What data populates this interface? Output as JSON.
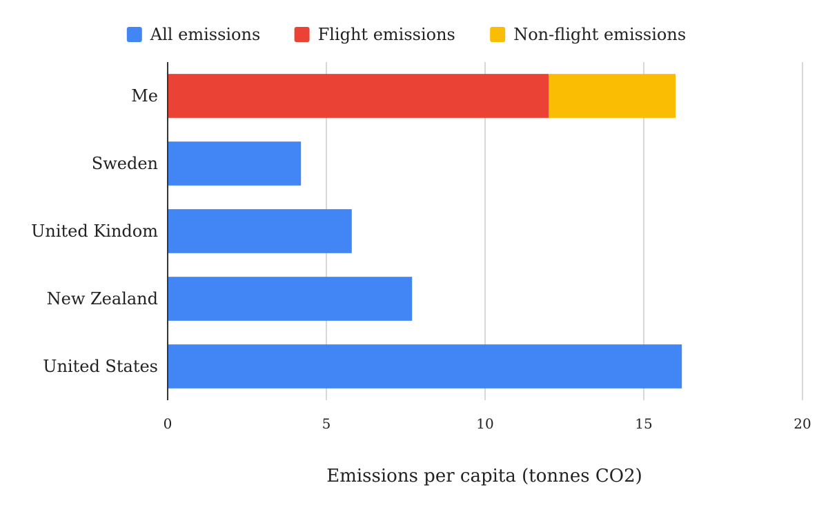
{
  "chart_data": {
    "type": "bar",
    "orientation": "horizontal",
    "stacked": true,
    "title": "",
    "categories": [
      "Me",
      "Sweden",
      "United Kindom",
      "New Zealand",
      "United States"
    ],
    "series": [
      {
        "name": "All emissions",
        "color": "#4285f4",
        "values": [
          0,
          4.2,
          5.8,
          7.7,
          16.2
        ]
      },
      {
        "name": "Flight emissions",
        "color": "#ea4335",
        "values": [
          12,
          0,
          0,
          0,
          0
        ]
      },
      {
        "name": "Non-flight emissions",
        "color": "#fbbc04",
        "values": [
          4,
          0,
          0,
          0,
          0
        ]
      }
    ],
    "xlabel": "Emissions per capita (tonnes CO2)",
    "ylabel": "",
    "xlim": [
      0,
      20
    ],
    "xticks": [
      0,
      5,
      10,
      15,
      20
    ],
    "xtick_labels": [
      "0",
      "5",
      "10",
      "15",
      "20"
    ],
    "grid": true,
    "legend_position": "top"
  }
}
